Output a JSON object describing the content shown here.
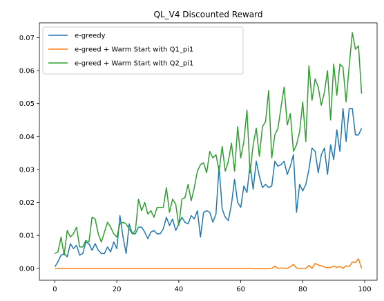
{
  "chart_data": {
    "type": "line",
    "title": "QL_V4 Discounted Reward",
    "xlabel": "",
    "ylabel": "",
    "xlim": [
      -5,
      104
    ],
    "ylim": [
      -0.0036,
      0.0745
    ],
    "x_ticks": [
      0,
      20,
      40,
      60,
      80,
      100
    ],
    "x_tick_labels": [
      "0",
      "20",
      "40",
      "60",
      "80",
      "100"
    ],
    "y_ticks": [
      0.0,
      0.01,
      0.02,
      0.03,
      0.04,
      0.05,
      0.06,
      0.07
    ],
    "y_tick_labels": [
      "0.00",
      "0.01",
      "0.02",
      "0.03",
      "0.04",
      "0.05",
      "0.06",
      "0.07"
    ],
    "grid": false,
    "legend_position": "top-left",
    "x": [
      0,
      1,
      2,
      3,
      4,
      5,
      6,
      7,
      8,
      9,
      10,
      11,
      12,
      13,
      14,
      15,
      16,
      17,
      18,
      19,
      20,
      21,
      22,
      23,
      24,
      25,
      26,
      27,
      28,
      29,
      30,
      31,
      32,
      33,
      34,
      35,
      36,
      37,
      38,
      39,
      40,
      41,
      42,
      43,
      44,
      45,
      46,
      47,
      48,
      49,
      50,
      51,
      52,
      53,
      54,
      55,
      56,
      57,
      58,
      59,
      60,
      61,
      62,
      63,
      64,
      65,
      66,
      67,
      68,
      69,
      70,
      71,
      72,
      73,
      74,
      75,
      76,
      77,
      78,
      79,
      80,
      81,
      82,
      83,
      84,
      85,
      86,
      87,
      88,
      89,
      90,
      91,
      92,
      93,
      94,
      95,
      96,
      97,
      98,
      99
    ],
    "series": [
      {
        "name": "e-greedy",
        "color": "#1f77b4",
        "values": [
          0.0005,
          0.002,
          0.004,
          0.0045,
          0.0035,
          0.0075,
          0.006,
          0.007,
          0.004,
          0.0045,
          0.008,
          0.0075,
          0.0055,
          0.0075,
          0.0055,
          0.0045,
          0.0045,
          0.0065,
          0.005,
          0.008,
          0.006,
          0.016,
          0.0095,
          0.0045,
          0.0135,
          0.0105,
          0.0105,
          0.0125,
          0.0125,
          0.011,
          0.009,
          0.011,
          0.0115,
          0.0105,
          0.0105,
          0.012,
          0.0155,
          0.013,
          0.015,
          0.0115,
          0.0135,
          0.0155,
          0.014,
          0.0135,
          0.016,
          0.015,
          0.0175,
          0.0095,
          0.017,
          0.0175,
          0.017,
          0.014,
          0.0165,
          0.031,
          0.018,
          0.0155,
          0.0145,
          0.0195,
          0.027,
          0.02,
          0.0185,
          0.025,
          0.023,
          0.0315,
          0.024,
          0.0325,
          0.028,
          0.0245,
          0.0255,
          0.0245,
          0.025,
          0.0325,
          0.031,
          0.0315,
          0.0325,
          0.0285,
          0.031,
          0.0345,
          0.017,
          0.0255,
          0.0235,
          0.0255,
          0.03,
          0.0365,
          0.0355,
          0.029,
          0.0345,
          0.0365,
          0.0285,
          0.0375,
          0.033,
          0.042,
          0.0355,
          0.0485,
          0.0385,
          0.0485,
          0.0485,
          0.0405,
          0.0405,
          0.0425
        ]
      },
      {
        "name": "e-greed + Warm Start with Q1_pi1",
        "color": "#ff7f0e",
        "values": [
          0,
          0,
          0,
          0,
          0,
          0,
          0,
          0,
          0,
          0,
          0,
          0,
          0,
          0,
          0,
          0,
          0,
          0,
          0,
          0,
          0,
          0,
          0,
          0,
          0,
          0,
          0,
          0,
          0,
          0,
          0,
          0,
          0,
          0,
          0,
          0,
          0,
          0,
          0,
          0,
          0,
          0,
          0,
          0,
          0,
          0,
          0,
          0,
          0,
          0,
          0,
          0,
          0,
          0,
          0,
          0,
          0,
          0,
          0,
          0,
          0,
          0,
          0,
          0,
          -0.0001,
          -0.0001,
          -0.0001,
          -0.0001,
          -0.0001,
          -0.0001,
          0,
          0.0007,
          0,
          0.0001,
          0.0001,
          0,
          0.0005,
          0.0012,
          0.0001,
          0,
          0,
          0,
          0.0009,
          0,
          0.0015,
          0.001,
          0.0008,
          0.0004,
          0.0002,
          0.0003,
          0.0006,
          0.0003,
          0.0006,
          0,
          0.0008,
          0.0005,
          0.0019,
          0.0018,
          0.0029,
          0
        ]
      },
      {
        "name": "e-greed + Warm Start with Q2_pi1",
        "color": "#2ca02c",
        "values": [
          0.0045,
          0.005,
          0.0095,
          0.004,
          0.0115,
          0.0095,
          0.0105,
          0.0125,
          0.0065,
          0.0065,
          0.0085,
          0.008,
          0.0155,
          0.015,
          0.0105,
          0.008,
          0.011,
          0.014,
          0.0125,
          0.0105,
          0.0095,
          0.0135,
          0.014,
          0.0135,
          0.012,
          0.0105,
          0.0115,
          0.021,
          0.0175,
          0.02,
          0.0165,
          0.0175,
          0.0155,
          0.0185,
          0.0185,
          0.0185,
          0.0245,
          0.017,
          0.021,
          0.0195,
          0.013,
          0.021,
          0.0215,
          0.0255,
          0.0205,
          0.0245,
          0.0295,
          0.0315,
          0.032,
          0.029,
          0.0355,
          0.0335,
          0.0345,
          0.0295,
          0.037,
          0.0295,
          0.0325,
          0.038,
          0.0295,
          0.043,
          0.0335,
          0.0385,
          0.048,
          0.029,
          0.0375,
          0.0425,
          0.034,
          0.043,
          0.0445,
          0.054,
          0.0335,
          0.0405,
          0.0425,
          0.049,
          0.055,
          0.0435,
          0.047,
          0.0355,
          0.0375,
          0.0415,
          0.0505,
          0.0385,
          0.0615,
          0.051,
          0.0575,
          0.055,
          0.0495,
          0.0535,
          0.06,
          0.045,
          0.062,
          0.0525,
          0.062,
          0.061,
          0.0505,
          0.0615,
          0.0715,
          0.0665,
          0.0675,
          0.053
        ]
      }
    ]
  }
}
